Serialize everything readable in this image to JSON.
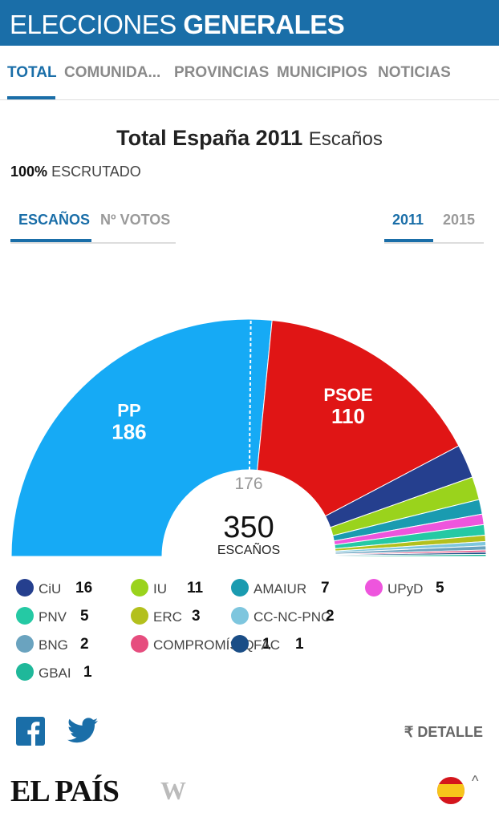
{
  "header": {
    "title_light": "ELECCIONES",
    "title_bold": "GENERALES"
  },
  "nav": {
    "items": [
      "TOTAL",
      "COMUNIDA...",
      "PROVINCIAS",
      "MUNICIPIOS",
      "NOTICIAS"
    ],
    "active": "TOTAL"
  },
  "summary": {
    "title": "Total España 2011",
    "subtitle": "Escaños",
    "scrutiny_pct": "100%",
    "scrutiny_label": "ESCRUTADO"
  },
  "tabs": {
    "metric": [
      "ESCAÑOS",
      "Nº VOTOS"
    ],
    "metric_active": "ESCAÑOS",
    "year": [
      "2011",
      "2015"
    ],
    "year_active": "2011"
  },
  "chart_data": {
    "type": "pie",
    "title": "",
    "total_seats": 350,
    "total_label": "350",
    "total_caption": "ESCAÑOS",
    "majority": 176,
    "majority_label": "176",
    "parties": [
      {
        "name": "PP",
        "seats": 186,
        "color": "#16aaf5"
      },
      {
        "name": "PSOE",
        "seats": 110,
        "color": "#e01515"
      },
      {
        "name": "CiU",
        "seats": 16,
        "color": "#253f8e"
      },
      {
        "name": "IU",
        "seats": 11,
        "color": "#9ad31c"
      },
      {
        "name": "AMAIUR",
        "seats": 7,
        "color": "#1a9bb0"
      },
      {
        "name": "UPyD",
        "seats": 5,
        "color": "#ee55dd"
      },
      {
        "name": "PNV",
        "seats": 5,
        "color": "#25c9a4"
      },
      {
        "name": "ERC",
        "seats": 3,
        "color": "#b3c01d"
      },
      {
        "name": "CC-NC-PNC",
        "seats": 2,
        "color": "#7ec6de"
      },
      {
        "name": "BNG",
        "seats": 2,
        "color": "#6aa3bf"
      },
      {
        "name": "COMPROMÍS-Q",
        "seats": 1,
        "color": "#e64d7e"
      },
      {
        "name": "FAC",
        "seats": 1,
        "color": "#1a4d86"
      },
      {
        "name": "GBAI",
        "seats": 1,
        "color": "#1fb89a"
      }
    ]
  },
  "legend": [
    [
      {
        "name": "CiU",
        "seats": "16",
        "color": "#253f8e"
      },
      {
        "name": "IU",
        "seats": "11",
        "color": "#9ad31c"
      },
      {
        "name": "AMAIUR",
        "seats": "7",
        "color": "#1a9bb0"
      },
      {
        "name": "UPyD",
        "seats": "5",
        "color": "#ee55dd"
      }
    ],
    [
      {
        "name": "PNV",
        "seats": "5",
        "color": "#25c9a4"
      },
      {
        "name": "ERC",
        "seats": "3",
        "color": "#b3c01d"
      },
      {
        "name": "CC-NC-PNC",
        "seats": "2",
        "color": "#7ec6de"
      }
    ],
    [
      {
        "name": "BNG",
        "seats": "2",
        "color": "#6aa3bf"
      },
      {
        "name": "COMPROMÍS-Q",
        "seats": "1",
        "color": "#e64d7e"
      },
      {
        "name": "FAC",
        "seats": "1",
        "color": "#1a4d86"
      }
    ],
    [
      {
        "name": "GBAI",
        "seats": "1",
        "color": "#1fb89a"
      }
    ]
  ],
  "footer": {
    "detalle_label": "DETALLE",
    "detalle_icon": "refresh-icon",
    "social_icons": [
      "facebook-icon",
      "twitter-icon"
    ],
    "logo": "EL PAÍS",
    "logo_secondary": "W",
    "flag_icon": "spain-flag-icon"
  },
  "colors": {
    "brand": "#1a6ea8"
  }
}
